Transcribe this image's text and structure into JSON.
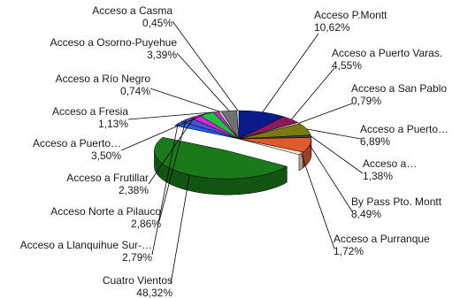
{
  "chart_data": {
    "type": "pie",
    "title": "",
    "three_d": true,
    "exploded_slice": "Cuatro Vientos",
    "slices": [
      {
        "name": "Acceso P.Montt",
        "label": "10,62%",
        "value": 10.62,
        "color": "#0a1a8a"
      },
      {
        "name": "Acceso a Puerto Varas.",
        "label": "4,55%",
        "value": 4.55,
        "color": "#8a1a5a"
      },
      {
        "name": "Acceso a San Pablo",
        "label": "0,79%",
        "value": 0.79,
        "color": "#e8e8d0"
      },
      {
        "name": "Acceso a Puerto…",
        "label": "6,89%",
        "value": 6.89,
        "color": "#7a7a10"
      },
      {
        "name": "Acceso a…",
        "label": "1,38%",
        "value": 1.38,
        "color": "#404040"
      },
      {
        "name": "By Pass Pto. Montt",
        "label": "8,49%",
        "value": 8.49,
        "color": "#e05a30"
      },
      {
        "name": "Acceso a Purranque",
        "label": "1,72%",
        "value": 1.72,
        "color": "#f4e4c0"
      },
      {
        "name": "Cuatro Vientos",
        "label": "48,32%",
        "value": 48.32,
        "color": "#1a7a1a"
      },
      {
        "name": "Acceso a Llanquihue Sur-…",
        "label": "2,79%",
        "value": 2.79,
        "color": "#2060e0"
      },
      {
        "name": "Acceso Norte a Pilauco",
        "label": "2,86%",
        "value": 2.86,
        "color": "#5050d0"
      },
      {
        "name": "Acceso a Frutillar",
        "label": "2,38%",
        "value": 2.38,
        "color": "#e020e0"
      },
      {
        "name": "Acceso a Puerto…",
        "label": "3,50%",
        "value": 3.5,
        "color": "#20c040"
      },
      {
        "name": "Acceso a Fresia",
        "label": "1,13%",
        "value": 1.13,
        "color": "#b030c0"
      },
      {
        "name": "Acceso a Río Negro",
        "label": "0,74%",
        "value": 0.74,
        "color": "#c0c0c0"
      },
      {
        "name": "Acceso a Osorno-Puyehue",
        "label": "3,39%",
        "value": 3.39,
        "color": "#707070"
      },
      {
        "name": "Acceso a Casma",
        "label": "0,45%",
        "value": 0.45,
        "color": "#e8e8e8"
      }
    ]
  }
}
